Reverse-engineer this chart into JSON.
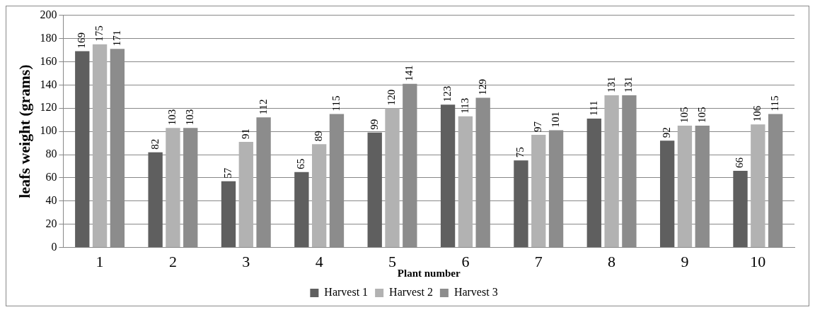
{
  "chart_data": {
    "type": "bar",
    "xlabel": "Plant number",
    "ylabel": "leafs weight (grams)",
    "categories": [
      "1",
      "2",
      "3",
      "4",
      "5",
      "6",
      "7",
      "8",
      "9",
      "10"
    ],
    "series": [
      {
        "name": "Harvest 1",
        "color": "#5f5f5f",
        "values": [
          169,
          82,
          57,
          65,
          99,
          123,
          75,
          111,
          92,
          66
        ]
      },
      {
        "name": "Harvest 2",
        "color": "#b2b2b2",
        "values": [
          175,
          103,
          91,
          89,
          120,
          113,
          97,
          131,
          105,
          106
        ]
      },
      {
        "name": "Harvest 3",
        "color": "#8c8c8c",
        "values": [
          171,
          103,
          112,
          115,
          141,
          129,
          101,
          131,
          105,
          115
        ]
      }
    ],
    "ylim": [
      0,
      200
    ],
    "yticks": [
      0,
      20,
      40,
      60,
      80,
      100,
      120,
      140,
      160,
      180,
      200
    ],
    "grid": "y",
    "legend": "bottom",
    "data_labels": true
  }
}
